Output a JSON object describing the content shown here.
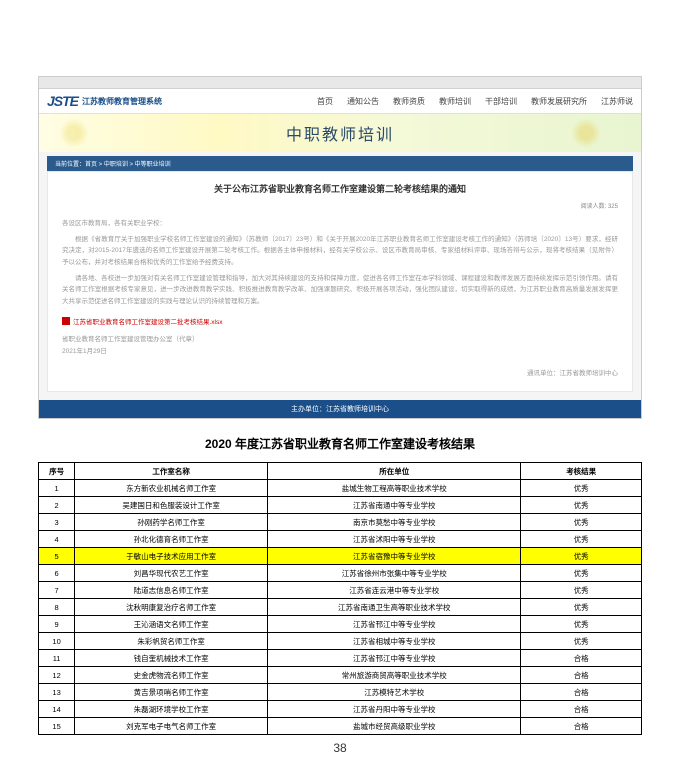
{
  "screenshot": {
    "logo_mark": "JSTE",
    "logo_text": "江苏教师教育管理系统",
    "nav": [
      "首页",
      "通知公告",
      "教师资质",
      "教师培训",
      "干部培训",
      "教师发展研究所",
      "江苏师说"
    ],
    "banner_title": "中职教师培训",
    "crumb": "当前位置：首页 > 中职培训 > 中等职业培训",
    "notice_title": "关于公布江苏省职业教育名师工作室建设第二轮考核结果的通知",
    "notice_meta": "阅读人数: 325",
    "para_greeting": "各设区市教育局，各有关职业学校：",
    "para1": "根据《省教育厅关于加强职业学校名师工作室建设的通知》（苏教师〔2017〕23号）和《关于开展2020年江苏职业教育名师工作室建设考核工作的通知》（苏师培〔2020〕13号）要求，经研究决定，对2015-2017年遴选的名师工作室建设开展第二轮考核工作。根据各主体申报材料，经有关学校公示、设区市教育局审核、专家组材料评审、现场答辩与公示，现将考核结果（见附件）予以公布，并对考核结果合格和优秀的工作室给予经费支持。",
    "para2": "请各地、各校进一步加强对有关名师工作室建设管理和指导，加大对其持续建设的支持和保障力度，促进各名师工作室在本学科领域、课程建设和教师发展方面持续发挥示范引领作用。请有关名师工作室根据考核专家意见，进一步改进教育教学实践、积极推进教育教学改革、加强课题研究、积极开展各项活动，强化团队建设，切实取得新的成绩，为江苏职业教育高质量发展发挥更大共享示范促进名师工作室建设的实践与理论认识的持续管理和方案。",
    "attachment_link": "江苏省职业教育名师工作室建设第二批考核结果.xlsx",
    "sign_office": "省职业教育名师工作室建设管理办公室（代章）",
    "sign_date": "2021年1月29日",
    "source": "通讯单位：江苏省教师培训中心",
    "footer": "主办单位：江苏省教师培训中心"
  },
  "results": {
    "title": "2020 年度江苏省职业教育名师工作室建设考核结果",
    "headers": {
      "idx": "序号",
      "name": "工作室名称",
      "unit": "所在单位",
      "result": "考核结果"
    },
    "rows": [
      {
        "idx": "1",
        "name": "东方新农业机械名师工作室",
        "unit": "盐城生物工程高等职业技术学校",
        "result": "优秀",
        "hl": false
      },
      {
        "idx": "2",
        "name": "吴建国日和色服装设计工作室",
        "unit": "江苏省南通中等专业学校",
        "result": "优秀",
        "hl": false
      },
      {
        "idx": "3",
        "name": "孙刚药学名师工作室",
        "unit": "南京市莫愁中等专业学校",
        "result": "优秀",
        "hl": false
      },
      {
        "idx": "4",
        "name": "孙北化德育名师工作室",
        "unit": "江苏省沭阳中等专业学校",
        "result": "优秀",
        "hl": false
      },
      {
        "idx": "5",
        "name": "于敏山电子技术应用工作室",
        "unit": "江苏省宿豫中等专业学校",
        "result": "优秀",
        "hl": true
      },
      {
        "idx": "6",
        "name": "刘昌华现代农艺工作室",
        "unit": "江苏省徐州市张集中等专业学校",
        "result": "优秀",
        "hl": false
      },
      {
        "idx": "7",
        "name": "陆道志信息名师工作室",
        "unit": "江苏省连云港中等专业学校",
        "result": "优秀",
        "hl": false
      },
      {
        "idx": "8",
        "name": "沈秋明康复治疗名师工作室",
        "unit": "江苏省南通卫生高等职业技术学校",
        "result": "优秀",
        "hl": false
      },
      {
        "idx": "9",
        "name": "王沁涵语文名师工作室",
        "unit": "江苏省邗江中等专业学校",
        "result": "优秀",
        "hl": false
      },
      {
        "idx": "10",
        "name": "朱彩帆贸名师工作室",
        "unit": "江苏省相城中等专业学校",
        "result": "优秀",
        "hl": false
      },
      {
        "idx": "11",
        "name": "钱自奎机械技术工作室",
        "unit": "江苏省邗江中等专业学校",
        "result": "合格",
        "hl": false
      },
      {
        "idx": "12",
        "name": "史金虎物流名师工作室",
        "unit": "常州旅游商贸高等职业技术学校",
        "result": "合格",
        "hl": false
      },
      {
        "idx": "13",
        "name": "黄吉景项哨名师工作室",
        "unit": "江苏模特艺术学校",
        "result": "合格",
        "hl": false
      },
      {
        "idx": "14",
        "name": "朱磊湖环境学校工作室",
        "unit": "江苏省丹阳中等专业学校",
        "result": "合格",
        "hl": false
      },
      {
        "idx": "15",
        "name": "刘克军电子电气名师工作室",
        "unit": "盐城市经贸高级职业学校",
        "result": "合格",
        "hl": false
      }
    ]
  },
  "page_number": "38"
}
